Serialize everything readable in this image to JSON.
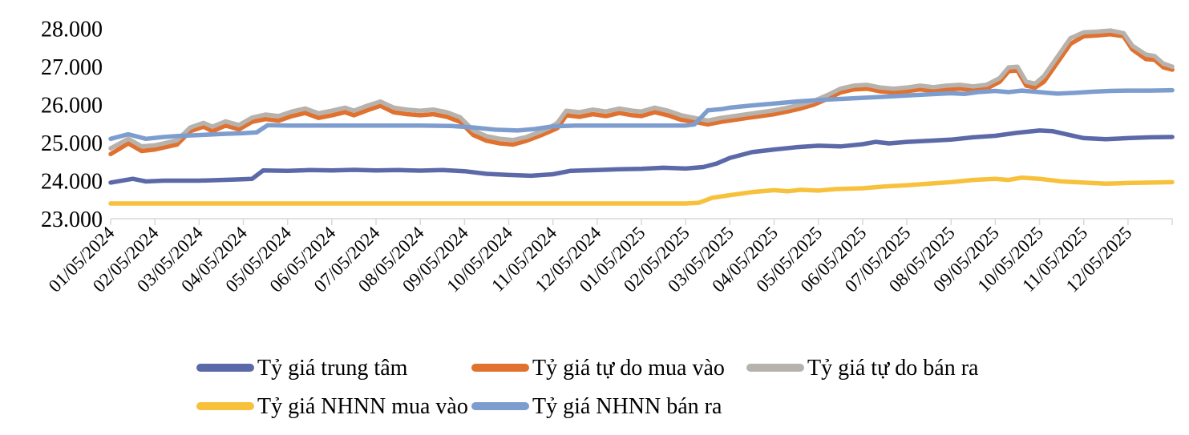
{
  "chart_data": {
    "type": "line",
    "title": "",
    "xlabel": "",
    "ylabel": "",
    "grid": false,
    "legend_position": "bottom",
    "y_min": 23000,
    "y_max": 28000,
    "y_tick_labels": [
      "23.000",
      "24.000",
      "25.000",
      "26.000",
      "27.000",
      "28.000"
    ],
    "x_tick_labels": [
      "01/05/2024",
      "02/05/2024",
      "03/05/2024",
      "04/05/2024",
      "05/05/2024",
      "06/05/2024",
      "07/05/2024",
      "08/05/2024",
      "09/05/2024",
      "10/05/2024",
      "11/05/2024",
      "12/05/2024",
      "01/05/2025",
      "02/05/2025",
      "03/05/2025",
      "04/05/2025",
      "05/05/2025",
      "06/05/2025",
      "07/05/2025",
      "08/05/2025",
      "09/05/2025",
      "10/05/2025",
      "11/05/2025",
      "12/05/2025"
    ],
    "x_unit_note": "t = months after first tick (01/05/2024); ticks are monthly",
    "axis_color": "#D9D9D9",
    "text_color": "#000000",
    "series": [
      {
        "name": "Tỷ giá trung tâm",
        "color": "#5B69A8",
        "points": [
          [
            0,
            23950
          ],
          [
            0.5,
            24050
          ],
          [
            0.8,
            23980
          ],
          [
            1.2,
            24000
          ],
          [
            2,
            24000
          ],
          [
            2.8,
            24030
          ],
          [
            3.2,
            24050
          ],
          [
            3.45,
            24270
          ],
          [
            4,
            24260
          ],
          [
            4.5,
            24280
          ],
          [
            5,
            24270
          ],
          [
            5.5,
            24285
          ],
          [
            6,
            24270
          ],
          [
            6.5,
            24280
          ],
          [
            7,
            24265
          ],
          [
            7.5,
            24280
          ],
          [
            8,
            24250
          ],
          [
            8.5,
            24180
          ],
          [
            9,
            24150
          ],
          [
            9.5,
            24130
          ],
          [
            10,
            24170
          ],
          [
            10.4,
            24260
          ],
          [
            11,
            24280
          ],
          [
            11.5,
            24300
          ],
          [
            12,
            24310
          ],
          [
            12.5,
            24340
          ],
          [
            13,
            24320
          ],
          [
            13.4,
            24360
          ],
          [
            13.7,
            24450
          ],
          [
            14,
            24600
          ],
          [
            14.5,
            24750
          ],
          [
            15,
            24820
          ],
          [
            15.5,
            24880
          ],
          [
            16,
            24920
          ],
          [
            16.5,
            24900
          ],
          [
            17,
            24960
          ],
          [
            17.3,
            25020
          ],
          [
            17.6,
            24980
          ],
          [
            18,
            25020
          ],
          [
            18.5,
            25050
          ],
          [
            19,
            25080
          ],
          [
            19.5,
            25140
          ],
          [
            20,
            25180
          ],
          [
            20.5,
            25260
          ],
          [
            21,
            25320
          ],
          [
            21.3,
            25300
          ],
          [
            21.6,
            25220
          ],
          [
            22,
            25120
          ],
          [
            22.5,
            25090
          ],
          [
            23,
            25120
          ],
          [
            23.5,
            25140
          ],
          [
            24,
            25150
          ]
        ]
      },
      {
        "name": "Tỷ giá tự do mua vào",
        "color": "#E0712F",
        "points": [
          [
            0,
            24700
          ],
          [
            0.4,
            24980
          ],
          [
            0.7,
            24780
          ],
          [
            1,
            24820
          ],
          [
            1.5,
            24950
          ],
          [
            1.8,
            25300
          ],
          [
            2.1,
            25420
          ],
          [
            2.3,
            25300
          ],
          [
            2.6,
            25450
          ],
          [
            2.9,
            25350
          ],
          [
            3.2,
            25550
          ],
          [
            3.5,
            25620
          ],
          [
            3.8,
            25580
          ],
          [
            4.1,
            25700
          ],
          [
            4.4,
            25780
          ],
          [
            4.7,
            25650
          ],
          [
            5,
            25720
          ],
          [
            5.3,
            25800
          ],
          [
            5.5,
            25720
          ],
          [
            5.8,
            25850
          ],
          [
            6.1,
            25970
          ],
          [
            6.4,
            25800
          ],
          [
            6.7,
            25750
          ],
          [
            7,
            25720
          ],
          [
            7.3,
            25750
          ],
          [
            7.6,
            25680
          ],
          [
            7.9,
            25550
          ],
          [
            8.2,
            25200
          ],
          [
            8.5,
            25050
          ],
          [
            8.8,
            24980
          ],
          [
            9.1,
            24950
          ],
          [
            9.4,
            25050
          ],
          [
            9.7,
            25180
          ],
          [
            9.9,
            25280
          ],
          [
            10.1,
            25380
          ],
          [
            10.3,
            25720
          ],
          [
            10.6,
            25680
          ],
          [
            10.9,
            25750
          ],
          [
            11.2,
            25700
          ],
          [
            11.5,
            25780
          ],
          [
            11.8,
            25720
          ],
          [
            12,
            25700
          ],
          [
            12.3,
            25800
          ],
          [
            12.6,
            25720
          ],
          [
            12.9,
            25600
          ],
          [
            13.2,
            25550
          ],
          [
            13.5,
            25480
          ],
          [
            13.8,
            25550
          ],
          [
            14.1,
            25600
          ],
          [
            14.4,
            25650
          ],
          [
            14.7,
            25700
          ],
          [
            15,
            25750
          ],
          [
            15.3,
            25820
          ],
          [
            15.6,
            25900
          ],
          [
            15.9,
            26000
          ],
          [
            16.2,
            26150
          ],
          [
            16.5,
            26320
          ],
          [
            16.8,
            26400
          ],
          [
            17.1,
            26420
          ],
          [
            17.4,
            26350
          ],
          [
            17.7,
            26320
          ],
          [
            18,
            26350
          ],
          [
            18.3,
            26400
          ],
          [
            18.6,
            26360
          ],
          [
            18.9,
            26400
          ],
          [
            19.2,
            26420
          ],
          [
            19.5,
            26380
          ],
          [
            19.8,
            26420
          ],
          [
            20.1,
            26600
          ],
          [
            20.3,
            26880
          ],
          [
            20.5,
            26900
          ],
          [
            20.7,
            26500
          ],
          [
            20.9,
            26450
          ],
          [
            21.1,
            26600
          ],
          [
            21.4,
            27100
          ],
          [
            21.7,
            27600
          ],
          [
            22,
            27800
          ],
          [
            22.3,
            27820
          ],
          [
            22.6,
            27850
          ],
          [
            22.9,
            27800
          ],
          [
            23.1,
            27450
          ],
          [
            23.4,
            27200
          ],
          [
            23.6,
            27180
          ],
          [
            23.8,
            26980
          ],
          [
            24,
            26920
          ]
        ]
      },
      {
        "name": "Tỷ giá tự do bán ra",
        "color": "#B7B2AB",
        "points": [
          [
            0,
            24850
          ],
          [
            0.4,
            25100
          ],
          [
            0.7,
            24900
          ],
          [
            1,
            24930
          ],
          [
            1.5,
            25060
          ],
          [
            1.8,
            25400
          ],
          [
            2.1,
            25520
          ],
          [
            2.3,
            25420
          ],
          [
            2.6,
            25560
          ],
          [
            2.9,
            25460
          ],
          [
            3.2,
            25660
          ],
          [
            3.5,
            25740
          ],
          [
            3.8,
            25700
          ],
          [
            4.1,
            25820
          ],
          [
            4.4,
            25900
          ],
          [
            4.7,
            25770
          ],
          [
            5,
            25840
          ],
          [
            5.3,
            25920
          ],
          [
            5.5,
            25840
          ],
          [
            5.8,
            25970
          ],
          [
            6.1,
            26080
          ],
          [
            6.4,
            25920
          ],
          [
            6.7,
            25870
          ],
          [
            7,
            25840
          ],
          [
            7.3,
            25870
          ],
          [
            7.6,
            25800
          ],
          [
            7.9,
            25670
          ],
          [
            8.2,
            25320
          ],
          [
            8.5,
            25170
          ],
          [
            8.8,
            25100
          ],
          [
            9.1,
            25070
          ],
          [
            9.4,
            25150
          ],
          [
            9.7,
            25280
          ],
          [
            9.9,
            25380
          ],
          [
            10.1,
            25520
          ],
          [
            10.3,
            25840
          ],
          [
            10.6,
            25800
          ],
          [
            10.9,
            25870
          ],
          [
            11.2,
            25820
          ],
          [
            11.5,
            25900
          ],
          [
            11.8,
            25840
          ],
          [
            12,
            25820
          ],
          [
            12.3,
            25920
          ],
          [
            12.6,
            25840
          ],
          [
            12.9,
            25720
          ],
          [
            13.2,
            25650
          ],
          [
            13.5,
            25580
          ],
          [
            13.8,
            25650
          ],
          [
            14.1,
            25700
          ],
          [
            14.4,
            25750
          ],
          [
            14.7,
            25800
          ],
          [
            15,
            25850
          ],
          [
            15.3,
            25920
          ],
          [
            15.6,
            26000
          ],
          [
            15.9,
            26100
          ],
          [
            16.2,
            26250
          ],
          [
            16.5,
            26420
          ],
          [
            16.8,
            26500
          ],
          [
            17.1,
            26520
          ],
          [
            17.4,
            26450
          ],
          [
            17.7,
            26420
          ],
          [
            18,
            26450
          ],
          [
            18.3,
            26500
          ],
          [
            18.6,
            26460
          ],
          [
            18.9,
            26500
          ],
          [
            19.2,
            26520
          ],
          [
            19.5,
            26480
          ],
          [
            19.8,
            26520
          ],
          [
            20.1,
            26700
          ],
          [
            20.3,
            26980
          ],
          [
            20.5,
            27000
          ],
          [
            20.7,
            26600
          ],
          [
            20.9,
            26550
          ],
          [
            21.1,
            26750
          ],
          [
            21.4,
            27250
          ],
          [
            21.7,
            27750
          ],
          [
            22,
            27900
          ],
          [
            22.3,
            27920
          ],
          [
            22.6,
            27950
          ],
          [
            22.9,
            27880
          ],
          [
            23.1,
            27550
          ],
          [
            23.4,
            27320
          ],
          [
            23.6,
            27280
          ],
          [
            23.8,
            27080
          ],
          [
            24,
            27000
          ]
        ]
      },
      {
        "name": "Tỷ giá NHNN mua vào",
        "color": "#F7C13C",
        "points": [
          [
            0,
            23400
          ],
          [
            2,
            23400
          ],
          [
            4,
            23400
          ],
          [
            6,
            23400
          ],
          [
            8,
            23400
          ],
          [
            10,
            23400
          ],
          [
            12,
            23400
          ],
          [
            13,
            23400
          ],
          [
            13.3,
            23420
          ],
          [
            13.6,
            23550
          ],
          [
            14,
            23620
          ],
          [
            14.5,
            23700
          ],
          [
            15,
            23750
          ],
          [
            15.3,
            23720
          ],
          [
            15.6,
            23760
          ],
          [
            16,
            23740
          ],
          [
            16.4,
            23780
          ],
          [
            17,
            23800
          ],
          [
            17.5,
            23850
          ],
          [
            18,
            23880
          ],
          [
            18.5,
            23920
          ],
          [
            19,
            23960
          ],
          [
            19.5,
            24020
          ],
          [
            20,
            24050
          ],
          [
            20.3,
            24020
          ],
          [
            20.6,
            24080
          ],
          [
            21,
            24050
          ],
          [
            21.5,
            23980
          ],
          [
            22,
            23950
          ],
          [
            22.5,
            23920
          ],
          [
            23,
            23940
          ],
          [
            23.5,
            23950
          ],
          [
            24,
            23960
          ]
        ]
      },
      {
        "name": "Tỷ giá NHNN bán ra",
        "color": "#7E9DCF",
        "points": [
          [
            0,
            25100
          ],
          [
            0.4,
            25220
          ],
          [
            0.8,
            25100
          ],
          [
            1.2,
            25150
          ],
          [
            1.6,
            25180
          ],
          [
            2,
            25200
          ],
          [
            2.5,
            25230
          ],
          [
            3,
            25250
          ],
          [
            3.3,
            25270
          ],
          [
            3.55,
            25460
          ],
          [
            4,
            25450
          ],
          [
            5,
            25450
          ],
          [
            6,
            25450
          ],
          [
            7,
            25450
          ],
          [
            7.7,
            25440
          ],
          [
            8.2,
            25400
          ],
          [
            8.7,
            25340
          ],
          [
            9.2,
            25320
          ],
          [
            9.6,
            25360
          ],
          [
            10,
            25430
          ],
          [
            10.5,
            25450
          ],
          [
            11,
            25450
          ],
          [
            12,
            25450
          ],
          [
            13,
            25450
          ],
          [
            13.2,
            25480
          ],
          [
            13.5,
            25850
          ],
          [
            13.8,
            25880
          ],
          [
            14,
            25920
          ],
          [
            14.5,
            25980
          ],
          [
            15,
            26030
          ],
          [
            15.5,
            26080
          ],
          [
            16,
            26120
          ],
          [
            16.5,
            26150
          ],
          [
            17,
            26180
          ],
          [
            17.5,
            26210
          ],
          [
            18,
            26240
          ],
          [
            18.5,
            26270
          ],
          [
            19,
            26300
          ],
          [
            19.3,
            26280
          ],
          [
            19.6,
            26330
          ],
          [
            20,
            26360
          ],
          [
            20.3,
            26330
          ],
          [
            20.6,
            26370
          ],
          [
            21,
            26330
          ],
          [
            21.4,
            26290
          ],
          [
            21.8,
            26310
          ],
          [
            22.2,
            26340
          ],
          [
            22.6,
            26360
          ],
          [
            23,
            26370
          ],
          [
            23.5,
            26370
          ],
          [
            24,
            26380
          ]
        ]
      }
    ]
  }
}
